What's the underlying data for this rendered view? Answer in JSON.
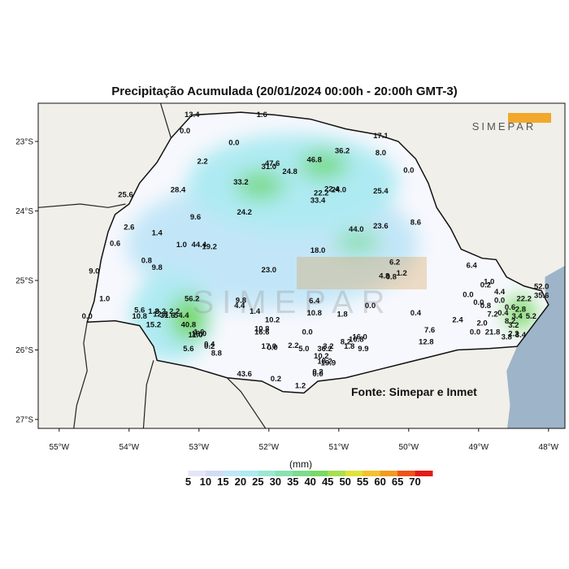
{
  "title": "Precipitação Acumulada (20/01/2024 00:00h - 20:00h GMT-3)",
  "source": "Fonte: Simepar e Inmet",
  "logo_text": "SIMEPAR",
  "watermark_text": "SIMEPAR",
  "lat_labels": [
    "23°S",
    "24°S",
    "25°S",
    "26°S",
    "27°S"
  ],
  "lon_labels": [
    "55°W",
    "54°W",
    "53°W",
    "52°W",
    "51°W",
    "50°W",
    "49°W",
    "48°W"
  ],
  "colorbar": {
    "unit": "(mm)",
    "labels": [
      "5",
      "10",
      "15",
      "20",
      "25",
      "30",
      "35",
      "40",
      "45",
      "50",
      "55",
      "60",
      "65",
      "70"
    ],
    "colors": [
      "#ffffff",
      "#e4e6f7",
      "#d2dbf5",
      "#c2e6f8",
      "#aeeaf2",
      "#9be7d4",
      "#8ae0b0",
      "#7bdc8c",
      "#78d964",
      "#a6df52",
      "#e0e23c",
      "#f3c12e",
      "#f39a20",
      "#ee5418",
      "#e21b14"
    ]
  },
  "colors": {
    "land": "#f0efe9",
    "ocean": "#9eb4c9",
    "state": "#f7f8fd",
    "accent_orange": "#f2a82c"
  },
  "stations": [
    {
      "lon": -53.1,
      "lat": -22.65,
      "v": "13.4"
    },
    {
      "lon": -52.1,
      "lat": -22.65,
      "v": "1.6"
    },
    {
      "lon": -53.2,
      "lat": -22.88,
      "v": "0.0"
    },
    {
      "lon": -52.5,
      "lat": -23.05,
      "v": "0.0"
    },
    {
      "lon": -50.4,
      "lat": -22.95,
      "v": "17.1"
    },
    {
      "lon": -50.95,
      "lat": -23.17,
      "v": "36.2"
    },
    {
      "lon": -50.4,
      "lat": -23.2,
      "v": "8.0"
    },
    {
      "lon": -51.35,
      "lat": -23.3,
      "v": "46.8"
    },
    {
      "lon": -51.95,
      "lat": -23.35,
      "v": "47.6"
    },
    {
      "lon": -52.0,
      "lat": -23.4,
      "v": "31.0"
    },
    {
      "lon": -52.95,
      "lat": -23.32,
      "v": "2.2"
    },
    {
      "lon": -51.7,
      "lat": -23.47,
      "v": "24.8"
    },
    {
      "lon": -50.0,
      "lat": -23.45,
      "v": "0.0"
    },
    {
      "lon": -52.4,
      "lat": -23.62,
      "v": "33.2"
    },
    {
      "lon": -51.1,
      "lat": -23.72,
      "v": "22.4"
    },
    {
      "lon": -51.0,
      "lat": -23.73,
      "v": "24.0"
    },
    {
      "lon": -51.25,
      "lat": -23.78,
      "v": "22.2"
    },
    {
      "lon": -50.4,
      "lat": -23.75,
      "v": "25.4"
    },
    {
      "lon": -53.3,
      "lat": -23.73,
      "v": "28.4"
    },
    {
      "lon": -51.3,
      "lat": -23.88,
      "v": "33.4"
    },
    {
      "lon": -54.05,
      "lat": -23.8,
      "v": "25.6"
    },
    {
      "lon": -52.35,
      "lat": -24.05,
      "v": "24.2"
    },
    {
      "lon": -53.05,
      "lat": -24.12,
      "v": "9.6"
    },
    {
      "lon": -50.4,
      "lat": -24.25,
      "v": "23.6"
    },
    {
      "lon": -49.9,
      "lat": -24.2,
      "v": "8.6"
    },
    {
      "lon": -54.0,
      "lat": -24.27,
      "v": "2.6"
    },
    {
      "lon": -50.75,
      "lat": -24.3,
      "v": "44.0"
    },
    {
      "lon": -53.6,
      "lat": -24.35,
      "v": "1.4"
    },
    {
      "lon": -54.2,
      "lat": -24.5,
      "v": "0.6"
    },
    {
      "lon": -53.25,
      "lat": -24.52,
      "v": "1.0"
    },
    {
      "lon": -53.0,
      "lat": -24.52,
      "v": "44.4"
    },
    {
      "lon": -52.85,
      "lat": -24.55,
      "v": "19.2"
    },
    {
      "lon": -51.3,
      "lat": -24.6,
      "v": "18.0"
    },
    {
      "lon": -53.75,
      "lat": -24.75,
      "v": "0.8"
    },
    {
      "lon": -50.2,
      "lat": -24.77,
      "v": "6.2"
    },
    {
      "lon": -53.6,
      "lat": -24.85,
      "v": "9.8"
    },
    {
      "lon": -52.0,
      "lat": -24.88,
      "v": "23.0"
    },
    {
      "lon": -54.5,
      "lat": -24.9,
      "v": "9.0"
    },
    {
      "lon": -49.1,
      "lat": -24.82,
      "v": "6.4"
    },
    {
      "lon": -50.1,
      "lat": -24.93,
      "v": "1.2"
    },
    {
      "lon": -50.35,
      "lat": -24.97,
      "v": "4.8"
    },
    {
      "lon": -50.25,
      "lat": -24.98,
      "v": "0.8"
    },
    {
      "lon": -48.85,
      "lat": -25.05,
      "v": "1.0"
    },
    {
      "lon": -48.9,
      "lat": -25.1,
      "v": "0.2"
    },
    {
      "lon": -48.1,
      "lat": -25.12,
      "v": "52.0"
    },
    {
      "lon": -48.7,
      "lat": -25.2,
      "v": "4.4"
    },
    {
      "lon": -49.15,
      "lat": -25.24,
      "v": "0.0"
    },
    {
      "lon": -48.1,
      "lat": -25.25,
      "v": "35.6"
    },
    {
      "lon": -54.35,
      "lat": -25.3,
      "v": "1.0"
    },
    {
      "lon": -53.1,
      "lat": -25.3,
      "v": "56.2"
    },
    {
      "lon": -52.4,
      "lat": -25.32,
      "v": "9.8"
    },
    {
      "lon": -51.35,
      "lat": -25.33,
      "v": "6.4"
    },
    {
      "lon": -48.7,
      "lat": -25.32,
      "v": "0.0"
    },
    {
      "lon": -48.35,
      "lat": -25.3,
      "v": "22.2"
    },
    {
      "lon": -52.42,
      "lat": -25.4,
      "v": "4.4"
    },
    {
      "lon": -49.0,
      "lat": -25.35,
      "v": "0.0"
    },
    {
      "lon": -48.9,
      "lat": -25.4,
      "v": "0.8"
    },
    {
      "lon": -50.55,
      "lat": -25.4,
      "v": "0.0"
    },
    {
      "lon": -48.55,
      "lat": -25.42,
      "v": "0.6"
    },
    {
      "lon": -48.4,
      "lat": -25.45,
      "v": "2.8"
    },
    {
      "lon": -53.85,
      "lat": -25.46,
      "v": "5.6"
    },
    {
      "lon": -53.65,
      "lat": -25.48,
      "v": "1.2"
    },
    {
      "lon": -53.55,
      "lat": -25.48,
      "v": "9.2"
    },
    {
      "lon": -53.35,
      "lat": -25.48,
      "v": "2.2"
    },
    {
      "lon": -52.2,
      "lat": -25.48,
      "v": "1.4"
    },
    {
      "lon": -51.35,
      "lat": -25.5,
      "v": "10.8"
    },
    {
      "lon": -50.95,
      "lat": -25.52,
      "v": "1.8"
    },
    {
      "lon": -49.9,
      "lat": -25.5,
      "v": "0.4"
    },
    {
      "lon": -48.65,
      "lat": -25.5,
      "v": "0.4"
    },
    {
      "lon": -48.8,
      "lat": -25.52,
      "v": "7.2"
    },
    {
      "lon": -48.45,
      "lat": -25.55,
      "v": "3.4"
    },
    {
      "lon": -48.25,
      "lat": -25.55,
      "v": "5.2"
    },
    {
      "lon": -54.6,
      "lat": -25.55,
      "v": "0.0"
    },
    {
      "lon": -53.85,
      "lat": -25.55,
      "v": "10.8"
    },
    {
      "lon": -53.45,
      "lat": -25.54,
      "v": "31.6"
    },
    {
      "lon": -53.25,
      "lat": -25.54,
      "v": "54.4"
    },
    {
      "lon": -53.55,
      "lat": -25.52,
      "v": "12.8"
    },
    {
      "lon": -51.95,
      "lat": -25.6,
      "v": "10.2"
    },
    {
      "lon": -49.3,
      "lat": -25.6,
      "v": "2.4"
    },
    {
      "lon": -48.95,
      "lat": -25.65,
      "v": "2.0"
    },
    {
      "lon": -48.55,
      "lat": -25.62,
      "v": "8.2"
    },
    {
      "lon": -48.5,
      "lat": -25.68,
      "v": "3.2"
    },
    {
      "lon": -53.65,
      "lat": -25.67,
      "v": "15.2"
    },
    {
      "lon": -53.15,
      "lat": -25.67,
      "v": "40.8"
    },
    {
      "lon": -52.1,
      "lat": -25.73,
      "v": "10.8"
    },
    {
      "lon": -52.1,
      "lat": -25.78,
      "v": "16.6"
    },
    {
      "lon": -51.45,
      "lat": -25.78,
      "v": "0.0"
    },
    {
      "lon": -49.7,
      "lat": -25.75,
      "v": "7.6"
    },
    {
      "lon": -48.8,
      "lat": -25.78,
      "v": "21.8"
    },
    {
      "lon": -49.05,
      "lat": -25.78,
      "v": "0.0"
    },
    {
      "lon": -48.5,
      "lat": -25.8,
      "v": "2.2"
    },
    {
      "lon": -48.4,
      "lat": -25.82,
      "v": "3.4"
    },
    {
      "lon": -48.6,
      "lat": -25.85,
      "v": "3.8"
    },
    {
      "lon": -53.0,
      "lat": -25.78,
      "v": "1.6"
    },
    {
      "lon": -53.0,
      "lat": -25.8,
      "v": "18.0"
    },
    {
      "lon": -53.05,
      "lat": -25.82,
      "v": "11.0"
    },
    {
      "lon": -50.7,
      "lat": -25.85,
      "v": "16.0"
    },
    {
      "lon": -50.75,
      "lat": -25.88,
      "v": "10.8"
    },
    {
      "lon": -50.9,
      "lat": -25.92,
      "v": "8.2"
    },
    {
      "lon": -49.75,
      "lat": -25.92,
      "v": "12.8"
    },
    {
      "lon": -52.85,
      "lat": -25.95,
      "v": "0.4"
    },
    {
      "lon": -52.85,
      "lat": -25.98,
      "v": "0.2"
    },
    {
      "lon": -52.0,
      "lat": -25.98,
      "v": "17.0"
    },
    {
      "lon": -51.95,
      "lat": -26.0,
      "v": "0.0"
    },
    {
      "lon": -51.65,
      "lat": -25.97,
      "v": "2.2"
    },
    {
      "lon": -51.5,
      "lat": -26.02,
      "v": "5.0"
    },
    {
      "lon": -51.15,
      "lat": -25.98,
      "v": "3.2"
    },
    {
      "lon": -51.2,
      "lat": -26.02,
      "v": "36.2"
    },
    {
      "lon": -50.85,
      "lat": -25.98,
      "v": "1.8"
    },
    {
      "lon": -50.65,
      "lat": -26.02,
      "v": "9.9"
    },
    {
      "lon": -53.15,
      "lat": -26.02,
      "v": "5.6"
    },
    {
      "lon": -52.75,
      "lat": -26.08,
      "v": "8.8"
    },
    {
      "lon": -51.25,
      "lat": -26.12,
      "v": "10.2"
    },
    {
      "lon": -51.2,
      "lat": -26.2,
      "v": "18.2"
    },
    {
      "lon": -51.15,
      "lat": -26.22,
      "v": "19.9"
    },
    {
      "lon": -51.3,
      "lat": -26.35,
      "v": "0.2"
    },
    {
      "lon": -51.3,
      "lat": -26.38,
      "v": "0.0"
    },
    {
      "lon": -52.35,
      "lat": -26.38,
      "v": "43.6"
    },
    {
      "lon": -51.9,
      "lat": -26.45,
      "v": "0.2"
    },
    {
      "lon": -51.55,
      "lat": -26.55,
      "v": "1.2"
    }
  ]
}
